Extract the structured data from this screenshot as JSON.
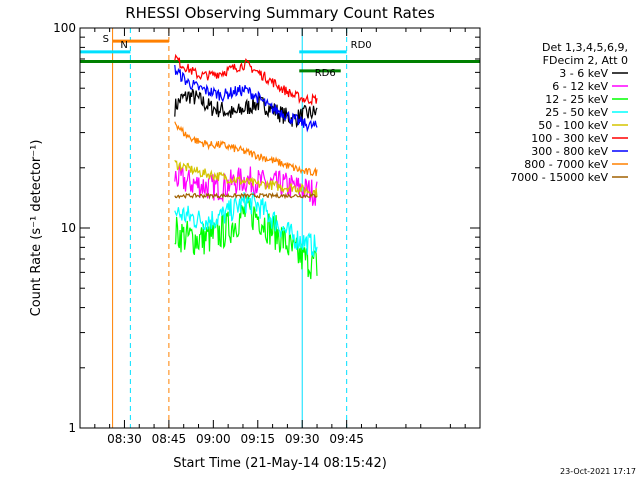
{
  "chart_data": {
    "type": "line",
    "title": "RHESSI Observing Summary Count Rates",
    "xlabel": "Start Time (21-May-14 08:15:42)",
    "ylabel": "Count Rate (s⁻¹ detector⁻¹)",
    "yscale": "log",
    "xlim_min": [
      0,
      135
    ],
    "ylim": [
      1,
      100
    ],
    "x_ticks": [
      {
        "t": 15,
        "label": "08:30"
      },
      {
        "t": 30,
        "label": "08:45"
      },
      {
        "t": 45,
        "label": "09:00"
      },
      {
        "t": 60,
        "label": "09:15"
      },
      {
        "t": 75,
        "label": "09:30"
      },
      {
        "t": 90,
        "label": "09:45"
      }
    ],
    "y_ticks": [
      {
        "v": 1,
        "label": "1"
      },
      {
        "v": 10,
        "label": "10"
      },
      {
        "v": 100,
        "label": "100"
      }
    ],
    "legend_header": [
      "Det 1,3,4,5,6,9,",
      "FDecim 2, Att 0"
    ],
    "series": [
      {
        "name": "3 - 6 keV",
        "color": "#000000",
        "t": [
          32,
          34,
          37,
          40,
          44,
          48,
          52,
          56,
          60,
          64,
          68,
          72,
          76,
          80
        ],
        "values": [
          40,
          44,
          46,
          44,
          40,
          39,
          37,
          40,
          42,
          40,
          37,
          35,
          37,
          38
        ]
      },
      {
        "name": "6 - 12 keV",
        "color": "#ff00ff",
        "t": [
          32,
          36,
          40,
          44,
          48,
          52,
          56,
          60,
          64,
          68,
          72,
          76,
          80
        ],
        "values": [
          18,
          17,
          16.5,
          16,
          16,
          17,
          17.5,
          17,
          16.5,
          16.5,
          16,
          15.5,
          15
        ]
      },
      {
        "name": "12 - 25 keV",
        "color": "#00ff00",
        "t": [
          32,
          36,
          40,
          44,
          48,
          52,
          56,
          60,
          64,
          68,
          72,
          76,
          80
        ],
        "values": [
          9.5,
          9,
          8.8,
          9,
          9.5,
          10.5,
          12,
          11.5,
          10,
          9,
          7.5,
          7,
          6.5
        ]
      },
      {
        "name": "25 - 50 keV",
        "color": "#00ffff",
        "t": [
          32,
          36,
          40,
          44,
          48,
          52,
          56,
          60,
          64,
          68,
          72,
          76,
          80
        ],
        "values": [
          12,
          11.5,
          11,
          11,
          11.5,
          12.5,
          13.5,
          13,
          11.5,
          10,
          9,
          8.5,
          8
        ]
      },
      {
        "name": "50 - 100 keV",
        "color": "#d4c400",
        "t": [
          32,
          36,
          40,
          44,
          48,
          52,
          56,
          60,
          64,
          68,
          72,
          76,
          80
        ],
        "values": [
          21,
          20,
          19,
          18.5,
          18,
          17.5,
          17,
          16.5,
          16.5,
          16,
          16,
          15.5,
          15
        ]
      },
      {
        "name": "100 - 300 keV",
        "color": "#ff0000",
        "t": [
          32,
          34,
          37,
          40,
          44,
          48,
          52,
          56,
          60,
          64,
          68,
          72,
          76,
          80
        ],
        "values": [
          72,
          66,
          62,
          58,
          58,
          60,
          63,
          66,
          60,
          55,
          50,
          46,
          44,
          44
        ]
      },
      {
        "name": "300 - 800 keV",
        "color": "#0000ff",
        "t": [
          32,
          36,
          40,
          44,
          48,
          52,
          56,
          60,
          64,
          68,
          72,
          76,
          80
        ],
        "values": [
          62,
          54,
          50,
          48,
          46,
          48,
          49,
          45,
          40,
          38,
          35,
          33,
          32
        ]
      },
      {
        "name": "800 - 7000 keV",
        "color": "#ff8000",
        "t": [
          32,
          34,
          36,
          40,
          44,
          48,
          52,
          56,
          60,
          64,
          68,
          72,
          76,
          80
        ],
        "values": [
          34,
          31,
          29,
          27,
          26,
          26,
          25,
          24,
          23,
          22,
          21,
          20,
          19,
          19
        ]
      },
      {
        "name": "7000 - 15000 keV",
        "color": "#a06000",
        "t": [
          32,
          80
        ],
        "values": [
          14.5,
          14.5
        ]
      }
    ],
    "markers": [
      {
        "label": "S",
        "color": "#ff8000",
        "t0": 11,
        "t1": 30
      },
      {
        "label": "N",
        "color": "#00e0ff",
        "t0": 0,
        "t1": 17
      },
      {
        "label": "RD0",
        "color": "#00e0ff",
        "t0": 74,
        "t1": 90
      },
      {
        "label": "RD6",
        "color": "#008000",
        "t0": 74,
        "t1": 88
      }
    ],
    "vlines": [
      {
        "t": 11,
        "color": "#ff8000",
        "style": "solid"
      },
      {
        "t": 17,
        "color": "#00e0ff",
        "style": "dashed"
      },
      {
        "t": 30,
        "color": "#ff8000",
        "style": "dashed"
      },
      {
        "t": 75,
        "color": "#00e0ff",
        "style": "solid"
      },
      {
        "t": 90,
        "color": "#00e0ff",
        "style": "dashed"
      }
    ],
    "hlines": [
      {
        "value": 68,
        "color": "#008000"
      }
    ],
    "footer_date": "23-Oct-2021 17:17"
  }
}
